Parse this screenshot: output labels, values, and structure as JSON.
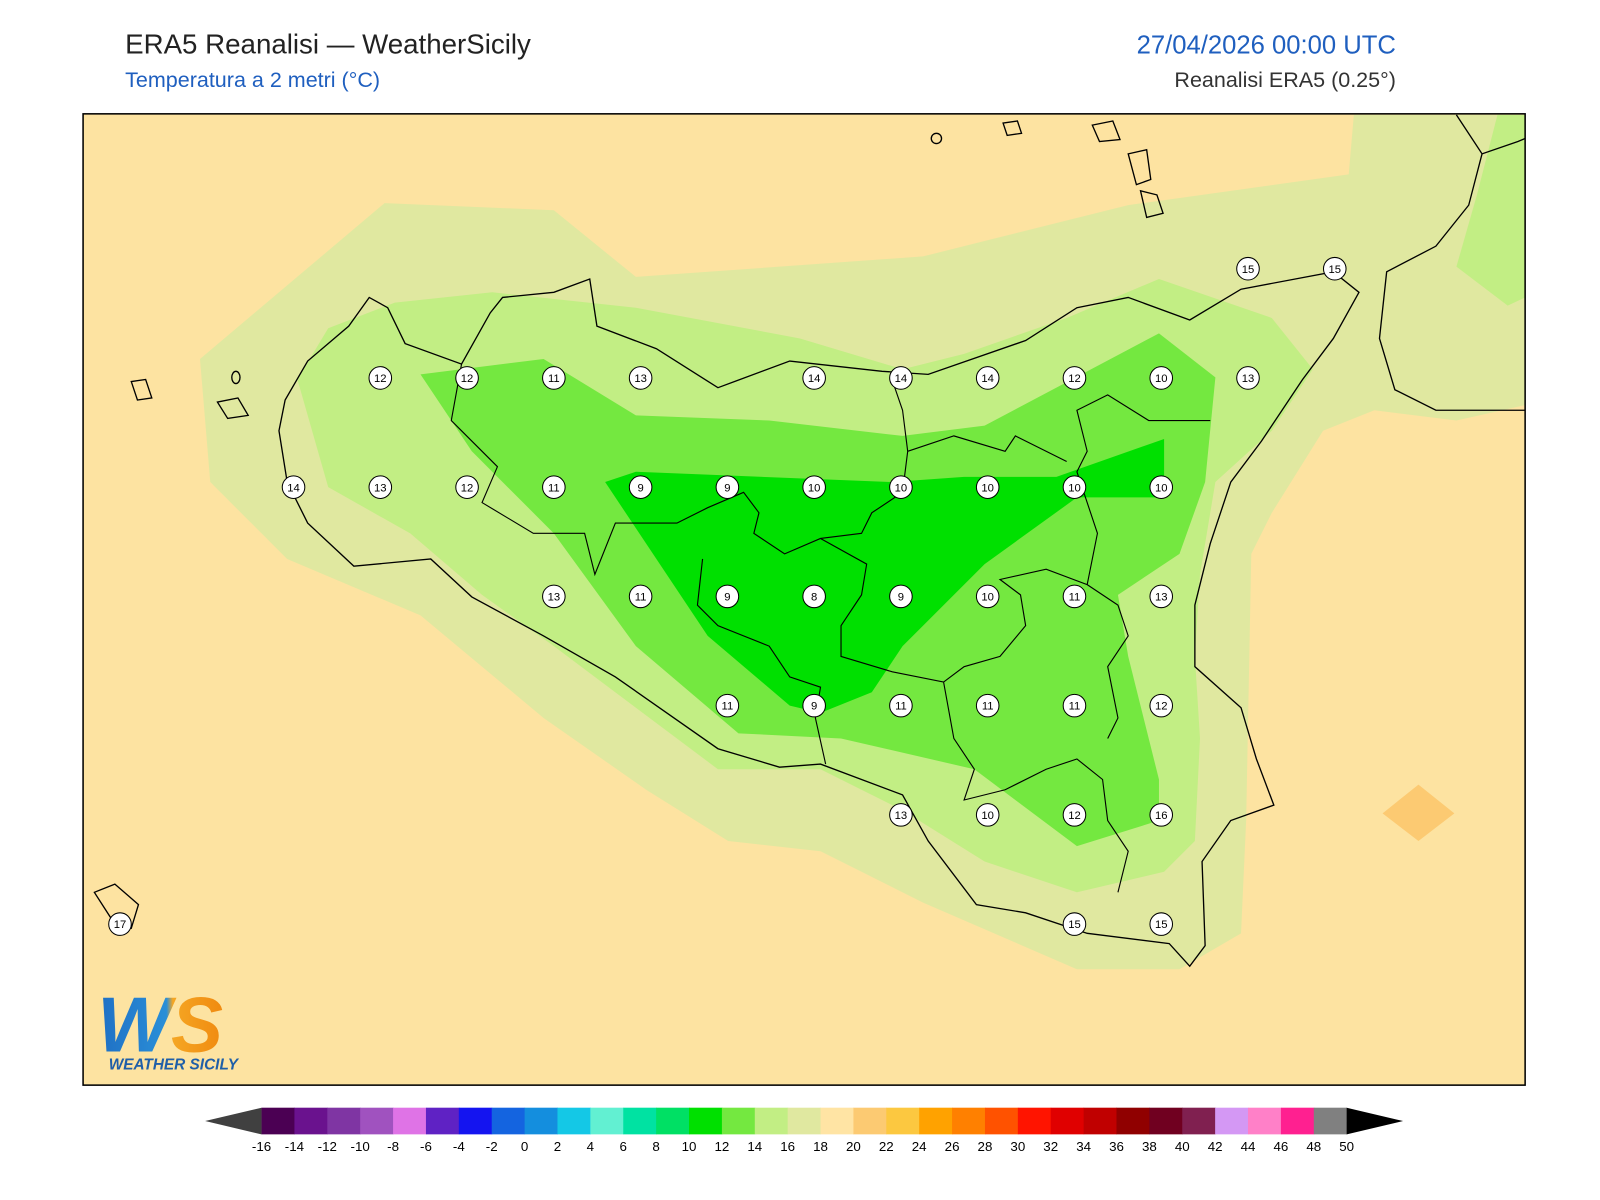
{
  "header": {
    "title": "ERA5 Reanalisi — WeatherSicily",
    "subtitle": "Temperatura a 2 metri (°C)",
    "date": "27/04/2026 00:00 UTC",
    "source": "Reanalisi ERA5 (0.25°)"
  },
  "map": {
    "point_grid": [
      [
        null,
        null,
        null,
        null,
        null,
        null,
        null,
        null,
        null,
        null,
        null,
        null,
        null,
        15,
        15
      ],
      [
        null,
        null,
        null,
        12,
        12,
        11,
        13,
        null,
        14,
        14,
        14,
        12,
        10,
        13,
        null
      ],
      [
        null,
        null,
        14,
        13,
        12,
        11,
        9,
        9,
        10,
        10,
        10,
        10,
        10,
        null,
        null
      ],
      [
        null,
        null,
        null,
        null,
        null,
        13,
        11,
        9,
        8,
        9,
        10,
        11,
        13,
        null,
        null
      ],
      [
        null,
        null,
        null,
        null,
        null,
        null,
        null,
        11,
        9,
        11,
        11,
        11,
        12,
        null,
        null
      ],
      [
        null,
        null,
        null,
        null,
        null,
        null,
        null,
        null,
        null,
        13,
        10,
        12,
        16,
        null,
        null
      ],
      [
        17,
        null,
        null,
        null,
        null,
        null,
        null,
        null,
        null,
        null,
        null,
        15,
        15,
        null,
        null
      ]
    ]
  },
  "colorbar": {
    "ticks": [
      -16,
      -14,
      -12,
      -10,
      -8,
      -6,
      -4,
      -2,
      0,
      2,
      4,
      6,
      8,
      10,
      12,
      14,
      16,
      18,
      20,
      22,
      24,
      26,
      28,
      30,
      32,
      34,
      36,
      38,
      40,
      42,
      44,
      46,
      48,
      50
    ],
    "colors": [
      "#4b0053",
      "#6a128e",
      "#7f35a3",
      "#a052bf",
      "#df73e6",
      "#5f22c4",
      "#1414f0",
      "#1464e0",
      "#148ede",
      "#14c8e6",
      "#62f0d2",
      "#00e2a2",
      "#00e064",
      "#00e000",
      "#74e840",
      "#c2ee84",
      "#e0e8a0",
      "#ffe4a4",
      "#fcca72",
      "#fcc840",
      "#ffa200",
      "#ff8000",
      "#ff5200",
      "#ff1400",
      "#e00000",
      "#c00000",
      "#900000",
      "#700020",
      "#802050",
      "#d498f4",
      "#ff80c8",
      "#ff2090",
      "#808080"
    ],
    "under_color": "#404040",
    "over_color": "#000000"
  },
  "logo": {
    "mark": "WS",
    "name": "WEATHER SICILY"
  }
}
